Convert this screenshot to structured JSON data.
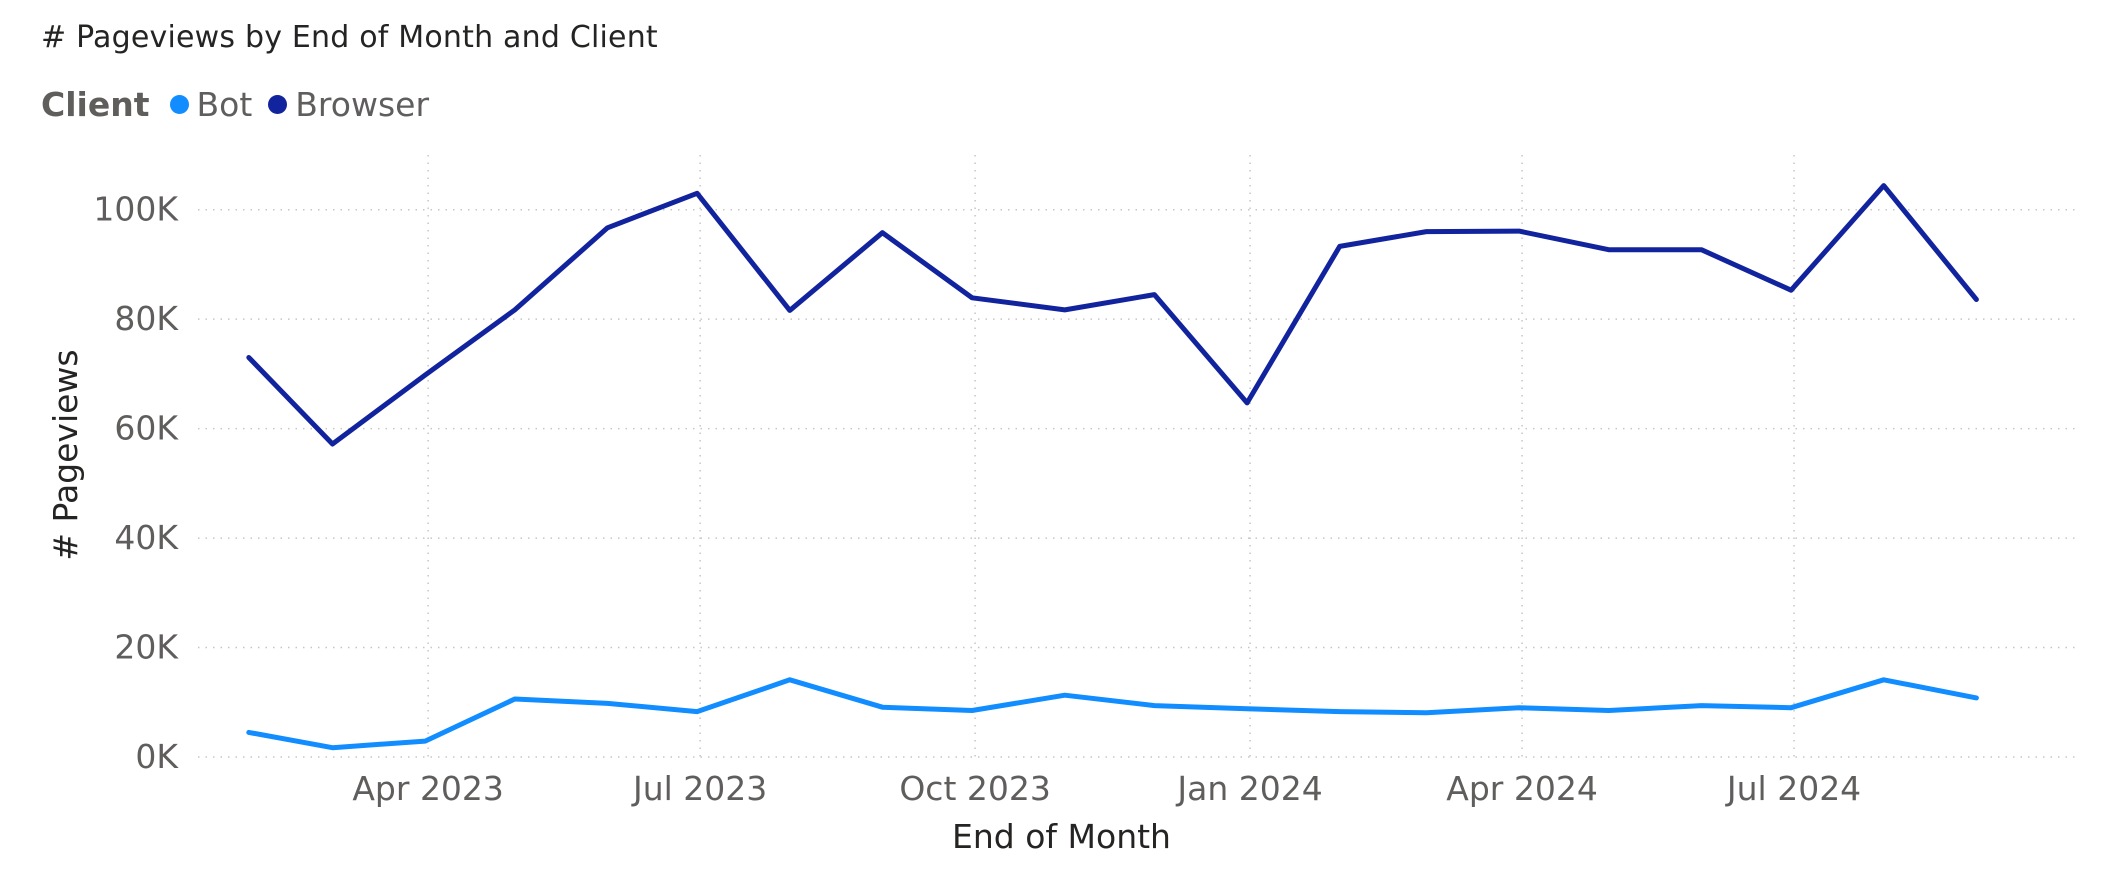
{
  "title": "# Pageviews by End of Month and Client",
  "legend": {
    "title": "Client",
    "items": [
      {
        "label": "Bot",
        "color": "#118dff"
      },
      {
        "label": "Browser",
        "color": "#12239e"
      }
    ]
  },
  "chart_data": {
    "type": "line",
    "title": "# Pageviews by End of Month and Client",
    "xlabel": "End of Month",
    "ylabel": "# Pageviews",
    "x": [
      "2023-01-31",
      "2023-02-28",
      "2023-03-31",
      "2023-04-30",
      "2023-05-31",
      "2023-06-30",
      "2023-07-31",
      "2023-08-31",
      "2023-09-30",
      "2023-10-31",
      "2023-11-30",
      "2023-12-31",
      "2024-01-31",
      "2024-02-29",
      "2024-03-31",
      "2024-04-30",
      "2024-05-31",
      "2024-06-30",
      "2024-07-31",
      "2024-08-31",
      "2024-09-30"
    ],
    "x_ticks": [
      {
        "date": "2023-04-01",
        "label": "Apr 2023"
      },
      {
        "date": "2023-07-01",
        "label": "Jul 2023"
      },
      {
        "date": "2023-10-01",
        "label": "Oct 2023"
      },
      {
        "date": "2024-01-01",
        "label": "Jan 2024"
      },
      {
        "date": "2024-04-01",
        "label": "Apr 2024"
      },
      {
        "date": "2024-07-01",
        "label": "Jul 2024"
      }
    ],
    "xlim": [
      "2023-01-14",
      "2024-10-03"
    ],
    "y_ticks": [
      {
        "value": 0,
        "label": "0K"
      },
      {
        "value": 20000,
        "label": "20K"
      },
      {
        "value": 40000,
        "label": "40K"
      },
      {
        "value": 60000,
        "label": "60K"
      },
      {
        "value": 80000,
        "label": "80K"
      },
      {
        "value": 100000,
        "label": "100K"
      }
    ],
    "ylim": [
      0,
      110000
    ],
    "grid": true,
    "legend_position": "top-left",
    "series": [
      {
        "name": "Bot",
        "color": "#118dff",
        "values": [
          4500,
          1700,
          2900,
          10600,
          9800,
          8300,
          14100,
          9100,
          8500,
          11300,
          9400,
          8800,
          8300,
          8100,
          9000,
          8500,
          9400,
          9000,
          14100,
          10800,
          null
        ]
      },
      {
        "name": "Browser",
        "color": "#12239e",
        "values": [
          73000,
          57200,
          69800,
          81700,
          96700,
          103000,
          81600,
          95800,
          83900,
          81700,
          84500,
          64700,
          93300,
          96000,
          96100,
          92700,
          92700,
          85300,
          104400,
          83600,
          null
        ]
      }
    ]
  }
}
